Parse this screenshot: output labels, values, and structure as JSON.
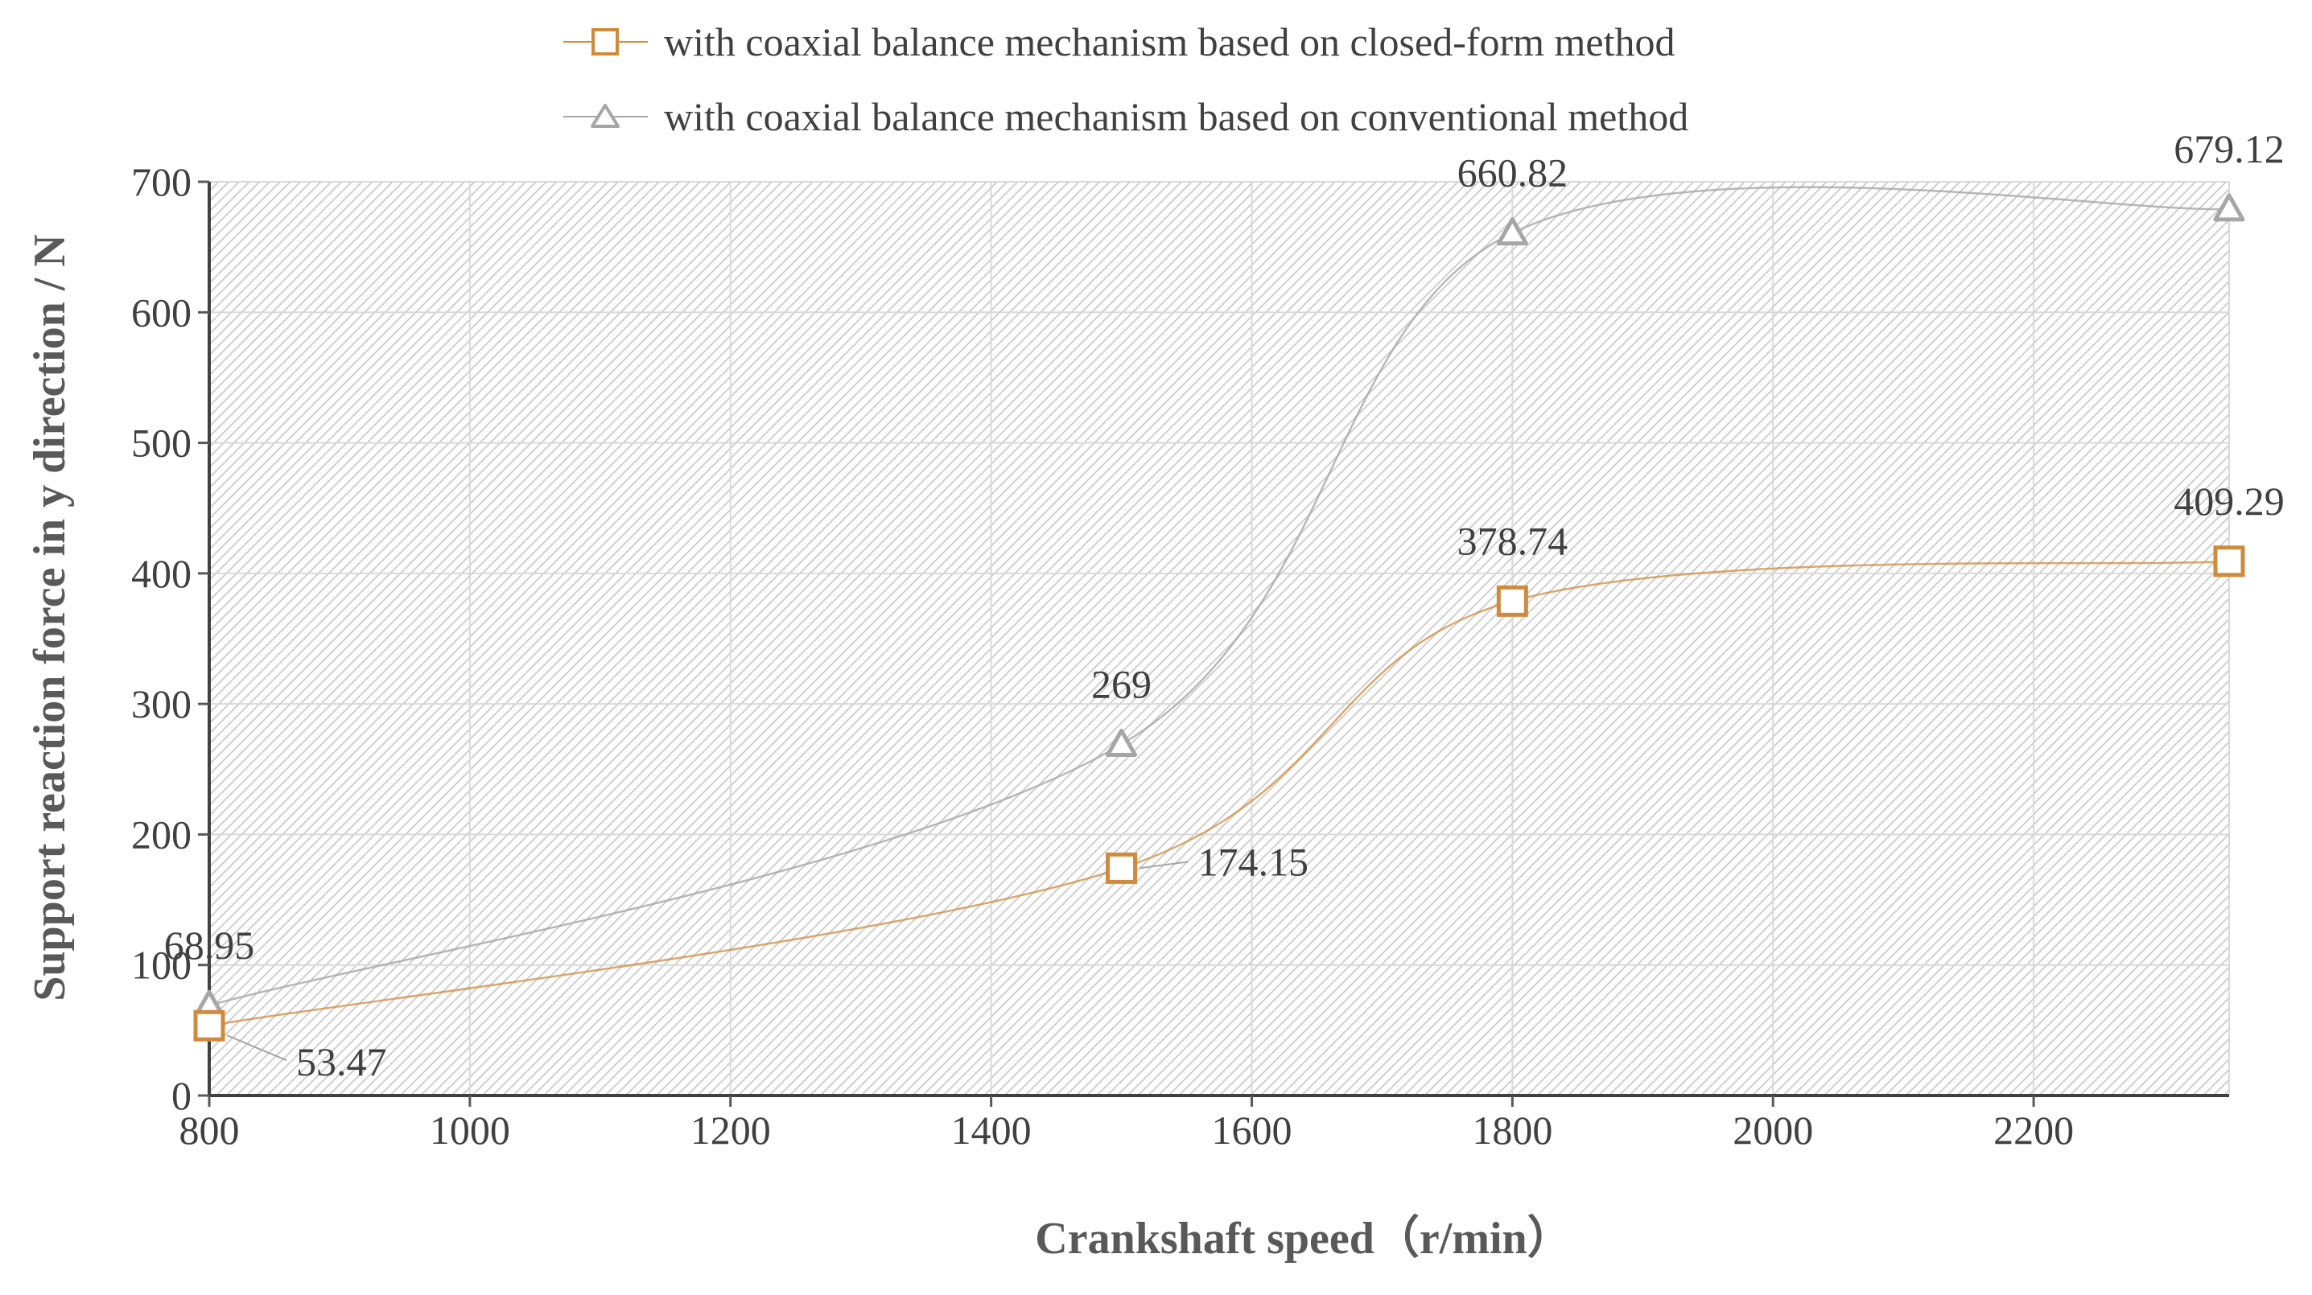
{
  "chart_data": {
    "type": "line",
    "xlabel": "Crankshaft speed（r/min）",
    "ylabel": "Support reaction force in y direction / N",
    "xlim": [
      800,
      2350
    ],
    "ylim": [
      0,
      700
    ],
    "x_ticks": [
      "800",
      "1000",
      "1200",
      "1400",
      "1600",
      "1800",
      "2000",
      "2200"
    ],
    "y_ticks": [
      "0",
      "100",
      "200",
      "300",
      "400",
      "500",
      "600",
      "700"
    ],
    "grid": true,
    "legend_position": "top",
    "series": [
      {
        "name": "with coaxial balance mechanism based on closed-form method",
        "marker": "square",
        "color": "#d08a3c",
        "x": [
          800,
          1500,
          1800,
          2350
        ],
        "values": [
          53.47,
          174.15,
          378.74,
          409.29
        ],
        "labels": [
          "53.47",
          "174.15",
          "378.74",
          "409.29"
        ]
      },
      {
        "name": "with coaxial balance mechanism based on conventional method",
        "marker": "triangle",
        "color": "#a6a6a6",
        "x": [
          800,
          1500,
          1800,
          2350
        ],
        "values": [
          68.95,
          269,
          660.82,
          679.12
        ],
        "labels": [
          "68.95",
          "269",
          "660.82",
          "679.12"
        ]
      }
    ]
  }
}
